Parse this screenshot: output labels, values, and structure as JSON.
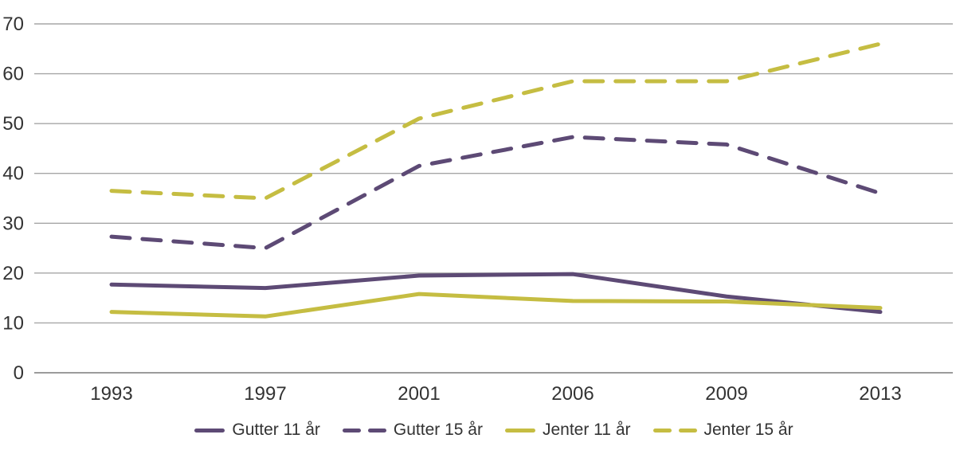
{
  "chart_data": {
    "type": "line",
    "title": "",
    "categories": [
      "1993",
      "1997",
      "2001",
      "2006",
      "2009",
      "2013"
    ],
    "series": [
      {
        "name": "Gutter 11 år",
        "values": [
          17.7,
          17,
          19.5,
          19.8,
          15.3,
          12.2
        ],
        "color": "#5d4a75",
        "dashed": false
      },
      {
        "name": "Gutter 15 år",
        "values": [
          27.3,
          25,
          41.5,
          47.3,
          45.8,
          36
        ],
        "color": "#5d4a75",
        "dashed": true
      },
      {
        "name": "Jenter 11 år",
        "values": [
          12.2,
          11.3,
          15.8,
          14.4,
          14.3,
          13
        ],
        "color": "#c5bd42",
        "dashed": false
      },
      {
        "name": "Jenter 15 år",
        "values": [
          36.5,
          35,
          51,
          58.5,
          58.5,
          66
        ],
        "color": "#c5bd42",
        "dashed": true
      }
    ],
    "xlabel": "",
    "ylabel": "",
    "ylim": [
      0,
      70
    ],
    "y_ticks": [
      0,
      10,
      20,
      30,
      40,
      50,
      60,
      70
    ],
    "grid": "horizontal",
    "gridline_color": "#a6a6a6",
    "zero_line_color": "#9b9b9b",
    "axis_text_color": "#333333",
    "legend_position": "bottom"
  }
}
